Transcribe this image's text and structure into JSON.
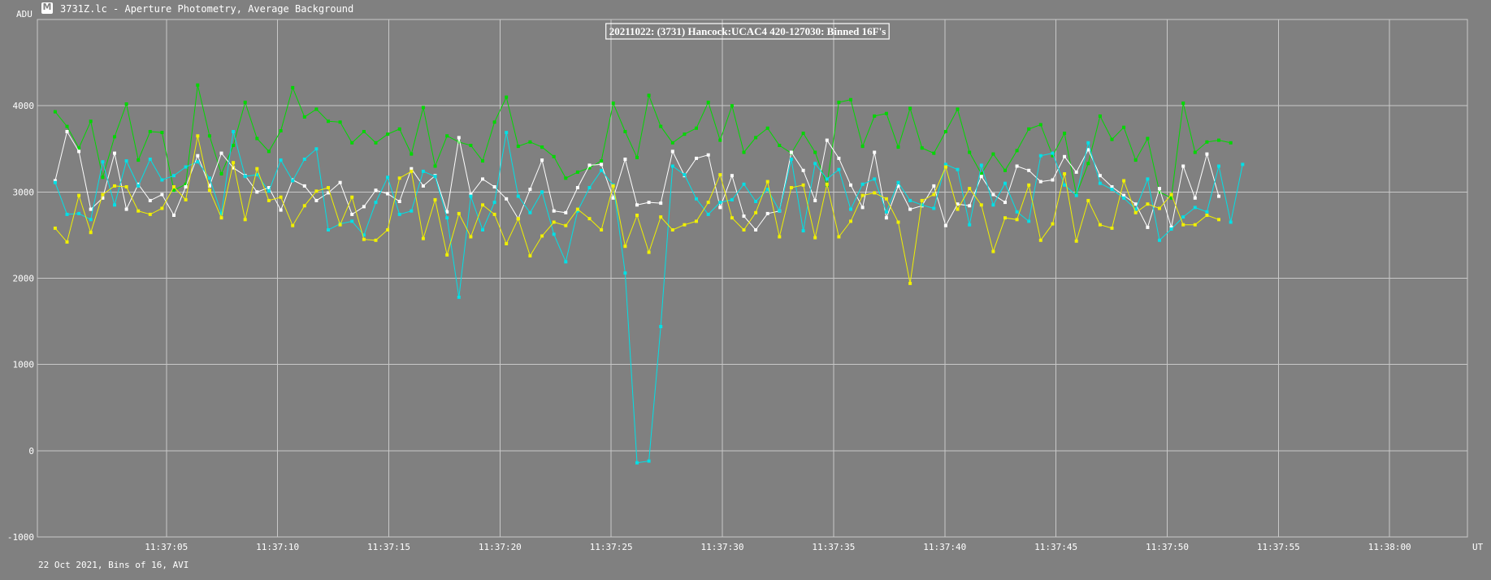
{
  "window": {
    "title": "3731Z.lc - Aperture Photometry, Average Background",
    "icon": "app-logo-icon"
  },
  "footer": {
    "note": "22 Oct 2021, Bins of 16, AVI"
  },
  "colors": {
    "background": "#808080",
    "grid": "#c8c8c8",
    "cyan": "#00e0e6",
    "green": "#00d800",
    "white": "#ffffff",
    "yellow": "#f0f000"
  },
  "chart_data": {
    "type": "line",
    "title": "20211022: (3731) Hancock:UCAC4 420-127030: Binned 16F's",
    "ylabel": "ADU",
    "xlabel": "UT",
    "ylim": [
      -1000,
      5000
    ],
    "yticks": [
      4000,
      3000,
      2000,
      1000,
      0,
      -1000
    ],
    "x_start": "11:37:00",
    "x_step_seconds": 0.5339,
    "x_range_seconds": [
      -0.8,
      63.5
    ],
    "xticks": [
      {
        "label": "11:37:05",
        "seconds": 5
      },
      {
        "label": "11:37:10",
        "seconds": 10
      },
      {
        "label": "11:37:15",
        "seconds": 15
      },
      {
        "label": "11:37:20",
        "seconds": 20
      },
      {
        "label": "11:37:25",
        "seconds": 25
      },
      {
        "label": "11:37:30",
        "seconds": 30
      },
      {
        "label": "11:37:35",
        "seconds": 35
      },
      {
        "label": "11:37:40",
        "seconds": 40
      },
      {
        "label": "11:37:45",
        "seconds": 45
      },
      {
        "label": "11:37:50",
        "seconds": 50
      },
      {
        "label": "11:37:55",
        "seconds": 55
      },
      {
        "label": "11:38:00",
        "seconds": 60
      }
    ],
    "grid": true,
    "series": [
      {
        "color": "#00d800",
        "values": [
          3930,
          3760,
          3510,
          3820,
          3170,
          3640,
          4020,
          3370,
          3700,
          3690,
          3020,
          3090,
          4240,
          3650,
          3210,
          3540,
          4040,
          3620,
          3470,
          3710,
          4210,
          3870,
          3960,
          3820,
          3810,
          3570,
          3700,
          3570,
          3670,
          3730,
          3440,
          3980,
          3300,
          3650,
          3580,
          3540,
          3360,
          3810,
          4100,
          3530,
          3580,
          3520,
          3410,
          3160,
          3230,
          3280,
          3360,
          4030,
          3700,
          3400,
          4120,
          3760,
          3570,
          3670,
          3740,
          4040,
          3600,
          4000,
          3460,
          3630,
          3740,
          3540,
          3450,
          3680,
          3460,
          3080,
          4040,
          4070,
          3530,
          3880,
          3910,
          3520,
          3970,
          3510,
          3450,
          3700,
          3960,
          3460,
          3210,
          3440,
          3250,
          3480,
          3730,
          3780,
          3420,
          3680,
          2970,
          3330,
          3880,
          3610,
          3750,
          3370,
          3620,
          3000,
          2930,
          4030,
          3460,
          3580,
          3600,
          3570
        ]
      },
      {
        "color": "#ffffff",
        "values": [
          3130,
          3700,
          3470,
          2800,
          2930,
          3450,
          2800,
          3090,
          2900,
          2970,
          2730,
          3060,
          3420,
          3070,
          3450,
          3280,
          3190,
          3000,
          3050,
          2790,
          3140,
          3070,
          2900,
          2990,
          3110,
          2740,
          2830,
          3020,
          2980,
          2890,
          3270,
          3070,
          3190,
          2770,
          3630,
          2970,
          3150,
          3060,
          2920,
          2690,
          3030,
          3370,
          2780,
          2760,
          3050,
          3310,
          3320,
          2930,
          3380,
          2850,
          2880,
          2870,
          3470,
          3190,
          3390,
          3430,
          2820,
          3190,
          2720,
          2560,
          2750,
          2780,
          3460,
          3250,
          2900,
          3600,
          3390,
          3080,
          2820,
          3460,
          2700,
          3070,
          2800,
          2840,
          3070,
          2610,
          2860,
          2840,
          3180,
          2970,
          2880,
          3300,
          3250,
          3120,
          3140,
          3410,
          3230,
          3490,
          3190,
          3060,
          2960,
          2860,
          2590,
          3040,
          2590,
          3300,
          2930,
          3440,
          2950
        ]
      },
      {
        "color": "#00e0e6",
        "values": [
          3110,
          2740,
          2750,
          2680,
          3350,
          2850,
          3360,
          3070,
          3380,
          3140,
          3190,
          3290,
          3350,
          3160,
          2750,
          3700,
          3180,
          3200,
          3010,
          3370,
          3130,
          3380,
          3500,
          2560,
          2630,
          2660,
          2500,
          2880,
          3170,
          2740,
          2780,
          3240,
          3180,
          2700,
          1780,
          2950,
          2560,
          2880,
          3690,
          2950,
          2760,
          3000,
          2510,
          2190,
          2780,
          3050,
          3250,
          3080,
          2060,
          -140,
          -120,
          1440,
          3300,
          3200,
          2920,
          2740,
          2880,
          2910,
          3090,
          2890,
          3030,
          2780,
          3380,
          2550,
          3330,
          3150,
          3260,
          2800,
          3090,
          3150,
          2770,
          3110,
          2900,
          2850,
          2810,
          3320,
          3260,
          2620,
          3310,
          2850,
          3100,
          2770,
          2660,
          3420,
          3450,
          3080,
          2960,
          3570,
          3100,
          3030,
          2930,
          2800,
          3150,
          2440,
          2570,
          2710,
          2820,
          2770,
          3300,
          2650,
          3320
        ]
      },
      {
        "color": "#f0f000",
        "values": [
          2580,
          2420,
          2960,
          2530,
          2970,
          3070,
          3060,
          2780,
          2740,
          2810,
          3060,
          2910,
          3650,
          3020,
          2700,
          3340,
          2680,
          3270,
          2900,
          2940,
          2610,
          2840,
          3010,
          3050,
          2620,
          2940,
          2450,
          2440,
          2560,
          3160,
          3240,
          2460,
          2910,
          2270,
          2750,
          2480,
          2850,
          2740,
          2400,
          2690,
          2260,
          2490,
          2650,
          2610,
          2800,
          2690,
          2560,
          3070,
          2370,
          2730,
          2300,
          2710,
          2560,
          2620,
          2660,
          2880,
          3200,
          2700,
          2560,
          2760,
          3120,
          2480,
          3050,
          3080,
          2470,
          3090,
          2480,
          2660,
          2960,
          2990,
          2920,
          2650,
          1940,
          2900,
          2970,
          3290,
          2800,
          3040,
          2850,
          2310,
          2700,
          2680,
          3080,
          2440,
          2630,
          3210,
          2430,
          2900,
          2620,
          2580,
          3130,
          2760,
          2860,
          2810,
          2970,
          2620,
          2620,
          2730,
          2680
        ]
      }
    ]
  }
}
